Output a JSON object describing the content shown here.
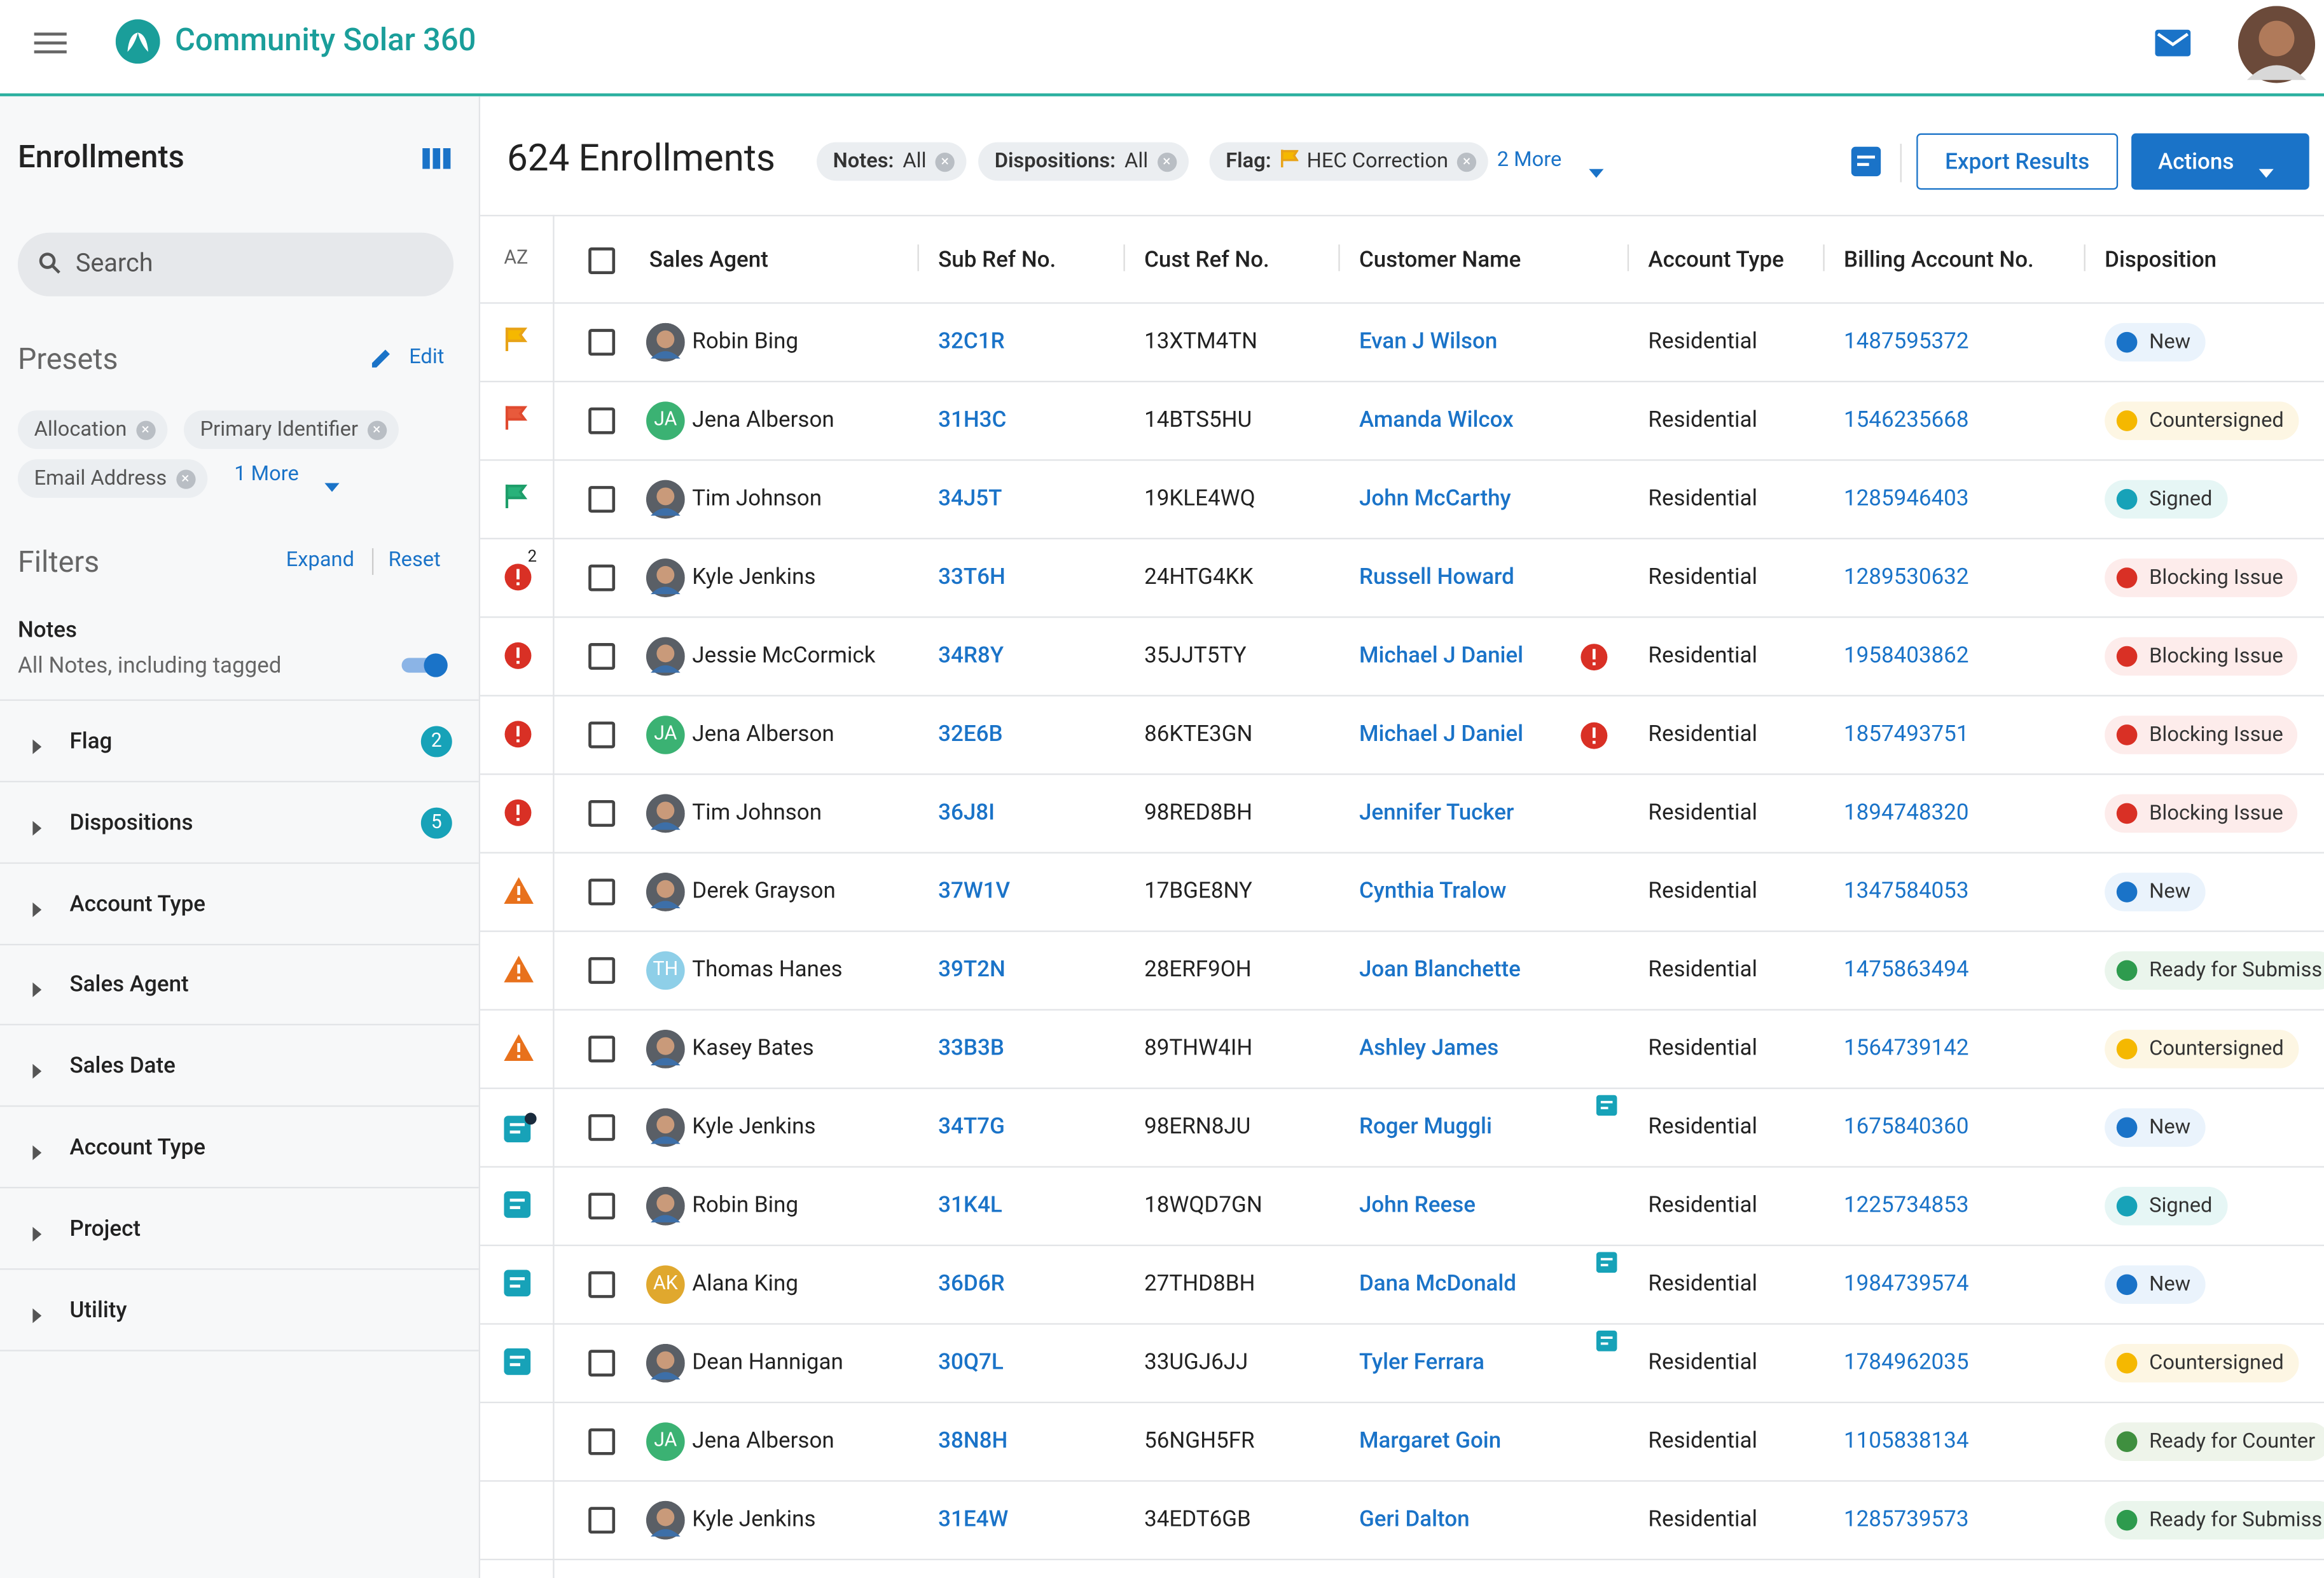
{
  "header": {
    "app_name": "Community Solar 360"
  },
  "sidebar": {
    "title": "Enrollments",
    "search_placeholder": "Search",
    "presets": {
      "title": "Presets",
      "edit": "Edit",
      "chips": [
        "Allocation",
        "Primary Identifier",
        "Email Address"
      ],
      "more": "1 More"
    },
    "filters": {
      "title": "Filters",
      "expand": "Expand",
      "reset": "Reset",
      "notes_label": "Notes",
      "notes_desc": "All Notes, including tagged",
      "groups": [
        {
          "label": "Flag",
          "count": 2
        },
        {
          "label": "Dispositions",
          "count": 5
        },
        {
          "label": "Account Type"
        },
        {
          "label": "Sales Agent"
        },
        {
          "label": "Sales Date"
        },
        {
          "label": "Account Type"
        },
        {
          "label": "Project"
        },
        {
          "label": "Utility"
        }
      ]
    }
  },
  "main": {
    "title": "624 Enrollments",
    "chips": [
      {
        "label": "Notes:",
        "value": "All"
      },
      {
        "label": "Dispositions:",
        "value": "All"
      },
      {
        "label": "Flag:",
        "value": "HEC Correction",
        "flag": true
      }
    ],
    "more": "2 More",
    "export": "Export Results",
    "actions": "Actions"
  },
  "table": {
    "sort_icon": "AZ",
    "columns": [
      "Sales Agent",
      "Sub Ref No.",
      "Cust Ref No.",
      "Customer Name",
      "Account Type",
      "Billing Account No.",
      "Disposition"
    ],
    "rows": [
      {
        "flag": "flag-yellow",
        "agent": "Robin Bing",
        "sub_ref": "32C1R",
        "cust_ref": "13XTM4TN",
        "customer": "Evan J Wilson",
        "account_type": "Residential",
        "billing": "1487595372",
        "disposition": "New",
        "kind": "new"
      },
      {
        "flag": "flag-red",
        "agent": "Jena Alberson",
        "initials": "JA",
        "avatar_color": "#3bb273",
        "sub_ref": "31H3C",
        "cust_ref": "14BTS5HU",
        "customer": "Amanda Wilcox",
        "account_type": "Residential",
        "billing": "1546235668",
        "disposition": "Countersigned",
        "kind": "countersigned"
      },
      {
        "flag": "flag-green",
        "agent": "Tim Johnson",
        "sub_ref": "34J5T",
        "cust_ref": "19KLE4WQ",
        "customer": "John McCarthy",
        "account_type": "Residential",
        "billing": "1285946403",
        "disposition": "Signed",
        "kind": "signed"
      },
      {
        "flag": "error",
        "flag_count": 2,
        "agent": "Kyle Jenkins",
        "sub_ref": "33T6H",
        "cust_ref": "24HTG4KK",
        "customer": "Russell Howard",
        "account_type": "Residential",
        "billing": "1289530632",
        "disposition": "Blocking Issue",
        "kind": "blocking"
      },
      {
        "flag": "error",
        "agent": "Jessie McCormick",
        "sub_ref": "34R8Y",
        "cust_ref": "35JJT5TY",
        "customer": "Michael J Daniel",
        "customer_icon": "error",
        "account_type": "Residential",
        "billing": "1958403862",
        "disposition": "Blocking Issue",
        "kind": "blocking"
      },
      {
        "flag": "error",
        "agent": "Jena Alberson",
        "initials": "JA",
        "avatar_color": "#3bb273",
        "sub_ref": "32E6B",
        "cust_ref": "86KTE3GN",
        "customer": "Michael J Daniel",
        "customer_icon": "error",
        "account_type": "Residential",
        "billing": "1857493751",
        "disposition": "Blocking Issue",
        "kind": "blocking"
      },
      {
        "flag": "error",
        "agent": "Tim Johnson",
        "sub_ref": "36J8I",
        "cust_ref": "98RED8BH",
        "customer": "Jennifer Tucker",
        "account_type": "Residential",
        "billing": "1894748320",
        "disposition": "Blocking Issue",
        "kind": "blocking"
      },
      {
        "flag": "warning",
        "agent": "Derek Grayson",
        "sub_ref": "37W1V",
        "cust_ref": "17BGE8NY",
        "customer": "Cynthia Tralow",
        "account_type": "Residential",
        "billing": "1347584053",
        "disposition": "New",
        "kind": "new"
      },
      {
        "flag": "warning",
        "agent": "Thomas Hanes",
        "initials": "TH",
        "avatar_color": "#8ecfe8",
        "sub_ref": "39T2N",
        "cust_ref": "28ERF9OH",
        "customer": "Joan Blanchette",
        "account_type": "Residential",
        "billing": "1475863494",
        "disposition": "Ready for Submiss",
        "kind": "ready"
      },
      {
        "flag": "warning",
        "agent": "Kasey Bates",
        "sub_ref": "33B3B",
        "cust_ref": "89THW4IH",
        "customer": "Ashley James",
        "account_type": "Residential",
        "billing": "1564739142",
        "disposition": "Countersigned",
        "kind": "countersigned"
      },
      {
        "flag": "note-dot",
        "agent": "Kyle Jenkins",
        "sub_ref": "34T7G",
        "cust_ref": "98ERN8JU",
        "customer": "Roger Muggli",
        "customer_icon": "note",
        "account_type": "Residential",
        "billing": "1675840360",
        "disposition": "New",
        "kind": "new"
      },
      {
        "flag": "note",
        "agent": "Robin Bing",
        "sub_ref": "31K4L",
        "cust_ref": "18WQD7GN",
        "customer": "John Reese",
        "account_type": "Residential",
        "billing": "1225734853",
        "disposition": "Signed",
        "kind": "signed"
      },
      {
        "flag": "note",
        "agent": "Alana King",
        "initials": "AK",
        "avatar_color": "#e0a82e",
        "sub_ref": "36D6R",
        "cust_ref": "27THD8BH",
        "customer": "Dana McDonald",
        "customer_icon": "note",
        "account_type": "Residential",
        "billing": "1984739574",
        "disposition": "New",
        "kind": "new"
      },
      {
        "flag": "note",
        "agent": "Dean Hannigan",
        "sub_ref": "30Q7L",
        "cust_ref": "33UGJ6JJ",
        "customer": "Tyler Ferrara",
        "customer_icon": "note",
        "account_type": "Residential",
        "billing": "1784962035",
        "disposition": "Countersigned",
        "kind": "countersigned"
      },
      {
        "agent": "Jena Alberson",
        "initials": "JA",
        "avatar_color": "#3bb273",
        "sub_ref": "38N8H",
        "cust_ref": "56NGH5FR",
        "customer": "Margaret Goin",
        "account_type": "Residential",
        "billing": "1105838134",
        "disposition": "Ready for Counter",
        "kind": "ready-counter"
      },
      {
        "agent": "Kyle Jenkins",
        "sub_ref": "31E4W",
        "cust_ref": "34EDT6GB",
        "customer": "Geri Dalton",
        "account_type": "Residential",
        "billing": "1285739573",
        "disposition": "Ready for Submiss",
        "kind": "ready"
      }
    ]
  }
}
